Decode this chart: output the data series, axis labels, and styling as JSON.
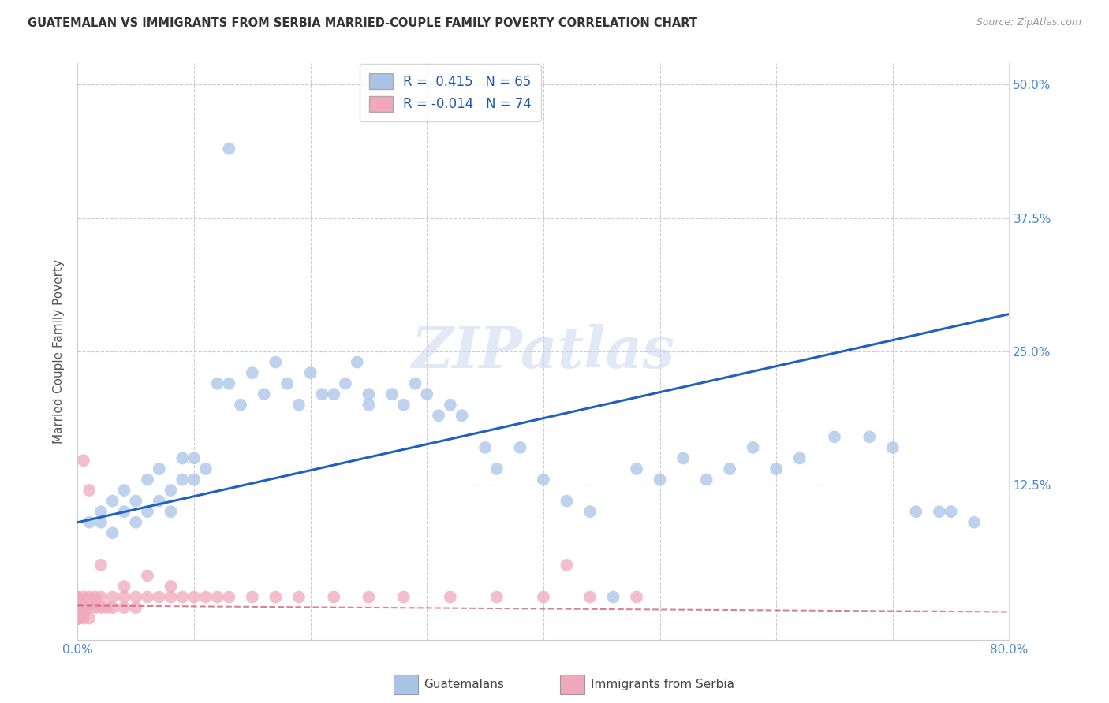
{
  "title": "GUATEMALAN VS IMMIGRANTS FROM SERBIA MARRIED-COUPLE FAMILY POVERTY CORRELATION CHART",
  "source": "Source: ZipAtlas.com",
  "ylabel": "Married-Couple Family Poverty",
  "xlim": [
    0.0,
    0.8
  ],
  "ylim": [
    -0.02,
    0.52
  ],
  "R_guatemalan": 0.415,
  "N_guatemalan": 65,
  "R_serbia": -0.014,
  "N_serbia": 74,
  "color_guatemalan": "#aac4e8",
  "color_serbia": "#f0a8bc",
  "line_color_guatemalan": "#2060c0",
  "line_color_serbia": "#d06080",
  "watermark": "ZIPatlas",
  "legend_label_guatemalan": "Guatemalans",
  "legend_label_serbia": "Immigrants from Serbia",
  "guatemalan_x": [
    0.01,
    0.02,
    0.02,
    0.03,
    0.03,
    0.04,
    0.04,
    0.05,
    0.05,
    0.06,
    0.06,
    0.07,
    0.07,
    0.08,
    0.08,
    0.09,
    0.09,
    0.1,
    0.1,
    0.11,
    0.12,
    0.13,
    0.14,
    0.15,
    0.16,
    0.17,
    0.18,
    0.19,
    0.2,
    0.21,
    0.22,
    0.23,
    0.24,
    0.25,
    0.25,
    0.27,
    0.28,
    0.29,
    0.3,
    0.31,
    0.32,
    0.33,
    0.35,
    0.36,
    0.38,
    0.4,
    0.42,
    0.44,
    0.46,
    0.48,
    0.5,
    0.52,
    0.54,
    0.56,
    0.58,
    0.6,
    0.62,
    0.65,
    0.68,
    0.7,
    0.72,
    0.74,
    0.75,
    0.77,
    0.13
  ],
  "guatemalan_y": [
    0.09,
    0.09,
    0.1,
    0.08,
    0.11,
    0.1,
    0.12,
    0.09,
    0.11,
    0.1,
    0.13,
    0.11,
    0.14,
    0.1,
    0.12,
    0.13,
    0.15,
    0.13,
    0.15,
    0.14,
    0.22,
    0.22,
    0.2,
    0.23,
    0.21,
    0.24,
    0.22,
    0.2,
    0.23,
    0.21,
    0.21,
    0.22,
    0.24,
    0.21,
    0.2,
    0.21,
    0.2,
    0.22,
    0.21,
    0.19,
    0.2,
    0.19,
    0.16,
    0.14,
    0.16,
    0.13,
    0.11,
    0.1,
    0.02,
    0.14,
    0.13,
    0.15,
    0.13,
    0.14,
    0.16,
    0.14,
    0.15,
    0.17,
    0.17,
    0.16,
    0.1,
    0.1,
    0.1,
    0.09,
    0.44
  ],
  "serbia_x": [
    0.0,
    0.0,
    0.0,
    0.0,
    0.0,
    0.0,
    0.0,
    0.0,
    0.0,
    0.0,
    0.0,
    0.0,
    0.0,
    0.0,
    0.0,
    0.0,
    0.0,
    0.0,
    0.0,
    0.0,
    0.0,
    0.0,
    0.0,
    0.0,
    0.0,
    0.0,
    0.0,
    0.0,
    0.0,
    0.0,
    0.005,
    0.005,
    0.005,
    0.005,
    0.01,
    0.01,
    0.01,
    0.015,
    0.015,
    0.02,
    0.02,
    0.025,
    0.03,
    0.03,
    0.04,
    0.04,
    0.05,
    0.05,
    0.06,
    0.07,
    0.08,
    0.09,
    0.1,
    0.11,
    0.12,
    0.13,
    0.15,
    0.17,
    0.19,
    0.22,
    0.25,
    0.28,
    0.32,
    0.36,
    0.4,
    0.44,
    0.48,
    0.42,
    0.005,
    0.01,
    0.02,
    0.04,
    0.06,
    0.08
  ],
  "serbia_y": [
    0.0,
    0.0,
    0.0,
    0.0,
    0.0,
    0.0,
    0.0,
    0.0,
    0.0,
    0.0,
    0.0,
    0.0,
    0.0,
    0.0,
    0.0,
    0.0,
    0.0,
    0.0,
    0.0,
    0.0,
    0.005,
    0.005,
    0.005,
    0.005,
    0.01,
    0.01,
    0.01,
    0.01,
    0.02,
    0.02,
    0.0,
    0.005,
    0.01,
    0.02,
    0.0,
    0.01,
    0.02,
    0.01,
    0.02,
    0.01,
    0.02,
    0.01,
    0.01,
    0.02,
    0.01,
    0.02,
    0.01,
    0.02,
    0.02,
    0.02,
    0.02,
    0.02,
    0.02,
    0.02,
    0.02,
    0.02,
    0.02,
    0.02,
    0.02,
    0.02,
    0.02,
    0.02,
    0.02,
    0.02,
    0.02,
    0.02,
    0.02,
    0.05,
    0.148,
    0.12,
    0.05,
    0.03,
    0.04,
    0.03
  ],
  "line_g_x0": 0.0,
  "line_g_y0": 0.09,
  "line_g_x1": 0.8,
  "line_g_y1": 0.285,
  "line_s_x0": 0.0,
  "line_s_y0": 0.012,
  "line_s_x1": 0.8,
  "line_s_y1": 0.006
}
